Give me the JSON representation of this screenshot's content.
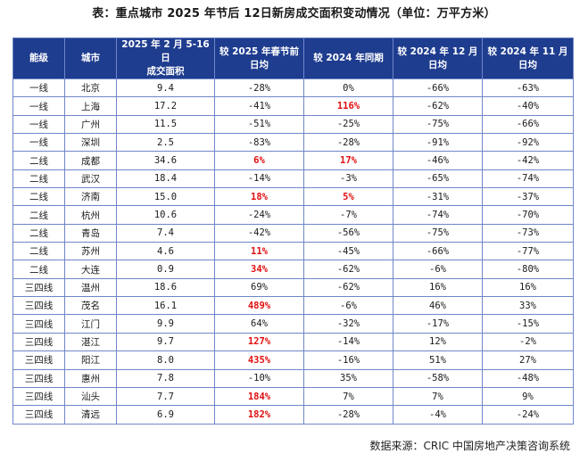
{
  "title": "表：重点城市 2025 年节后 12日新房成交面积变动情况（单位：万平方米）",
  "headers": {
    "tier": "能级",
    "city": "城市",
    "area": "2025 年 2 月 5-16 日\n成交面积",
    "vs_spring": "较 2025 年春节前\n日均",
    "vs_yoy": "较 2024 年同期",
    "vs_dec": "较 2024 年 12 月\n日均",
    "vs_nov": "较 2024 年 11 月\n日均"
  },
  "highlight_color": "#e01010",
  "rows": [
    {
      "tier": "一线",
      "city": "北京",
      "area": "9.4",
      "vs_spring": "-28%",
      "vs_yoy": "0%",
      "vs_dec": "-66%",
      "vs_nov": "-63%",
      "hl": []
    },
    {
      "tier": "一线",
      "city": "上海",
      "area": "17.2",
      "vs_spring": "-41%",
      "vs_yoy": "116%",
      "vs_dec": "-62%",
      "vs_nov": "-40%",
      "hl": [
        "vs_yoy"
      ]
    },
    {
      "tier": "一线",
      "city": "广州",
      "area": "11.5",
      "vs_spring": "-51%",
      "vs_yoy": "-25%",
      "vs_dec": "-75%",
      "vs_nov": "-66%",
      "hl": []
    },
    {
      "tier": "一线",
      "city": "深圳",
      "area": "2.5",
      "vs_spring": "-83%",
      "vs_yoy": "-28%",
      "vs_dec": "-91%",
      "vs_nov": "-92%",
      "hl": []
    },
    {
      "tier": "二线",
      "city": "成都",
      "area": "34.6",
      "vs_spring": "6%",
      "vs_yoy": "17%",
      "vs_dec": "-46%",
      "vs_nov": "-42%",
      "hl": [
        "vs_spring",
        "vs_yoy"
      ]
    },
    {
      "tier": "二线",
      "city": "武汉",
      "area": "18.4",
      "vs_spring": "-14%",
      "vs_yoy": "-3%",
      "vs_dec": "-65%",
      "vs_nov": "-74%",
      "hl": []
    },
    {
      "tier": "二线",
      "city": "济南",
      "area": "15.0",
      "vs_spring": "18%",
      "vs_yoy": "5%",
      "vs_dec": "-31%",
      "vs_nov": "-37%",
      "hl": [
        "vs_spring",
        "vs_yoy"
      ]
    },
    {
      "tier": "二线",
      "city": "杭州",
      "area": "10.6",
      "vs_spring": "-24%",
      "vs_yoy": "-7%",
      "vs_dec": "-74%",
      "vs_nov": "-70%",
      "hl": []
    },
    {
      "tier": "二线",
      "city": "青岛",
      "area": "7.4",
      "vs_spring": "-42%",
      "vs_yoy": "-56%",
      "vs_dec": "-75%",
      "vs_nov": "-73%",
      "hl": []
    },
    {
      "tier": "二线",
      "city": "苏州",
      "area": "4.6",
      "vs_spring": "11%",
      "vs_yoy": "-45%",
      "vs_dec": "-66%",
      "vs_nov": "-77%",
      "hl": [
        "vs_spring"
      ]
    },
    {
      "tier": "二线",
      "city": "大连",
      "area": "0.9",
      "vs_spring": "34%",
      "vs_yoy": "-62%",
      "vs_dec": "-6%",
      "vs_nov": "-80%",
      "hl": [
        "vs_spring"
      ]
    },
    {
      "tier": "三四线",
      "city": "温州",
      "area": "18.6",
      "vs_spring": "69%",
      "vs_yoy": "-62%",
      "vs_dec": "16%",
      "vs_nov": "16%",
      "hl": []
    },
    {
      "tier": "三四线",
      "city": "茂名",
      "area": "16.1",
      "vs_spring": "489%",
      "vs_yoy": "-6%",
      "vs_dec": "46%",
      "vs_nov": "33%",
      "hl": [
        "vs_spring"
      ]
    },
    {
      "tier": "三四线",
      "city": "江门",
      "area": "9.9",
      "vs_spring": "64%",
      "vs_yoy": "-32%",
      "vs_dec": "-17%",
      "vs_nov": "-15%",
      "hl": []
    },
    {
      "tier": "三四线",
      "city": "湛江",
      "area": "9.7",
      "vs_spring": "127%",
      "vs_yoy": "-14%",
      "vs_dec": "12%",
      "vs_nov": "-2%",
      "hl": [
        "vs_spring"
      ]
    },
    {
      "tier": "三四线",
      "city": "阳江",
      "area": "8.0",
      "vs_spring": "435%",
      "vs_yoy": "-16%",
      "vs_dec": "51%",
      "vs_nov": "27%",
      "hl": [
        "vs_spring"
      ]
    },
    {
      "tier": "三四线",
      "city": "惠州",
      "area": "7.8",
      "vs_spring": "-10%",
      "vs_yoy": "35%",
      "vs_dec": "-58%",
      "vs_nov": "-48%",
      "hl": []
    },
    {
      "tier": "三四线",
      "city": "汕头",
      "area": "7.7",
      "vs_spring": "184%",
      "vs_yoy": "7%",
      "vs_dec": "7%",
      "vs_nov": "9%",
      "hl": [
        "vs_spring"
      ]
    },
    {
      "tier": "三四线",
      "city": "清远",
      "area": "6.9",
      "vs_spring": "182%",
      "vs_yoy": "-28%",
      "vs_dec": "-4%",
      "vs_nov": "-24%",
      "hl": [
        "vs_spring"
      ]
    }
  ],
  "source": "数据来源：CRIC 中国房地产决策咨询系统"
}
